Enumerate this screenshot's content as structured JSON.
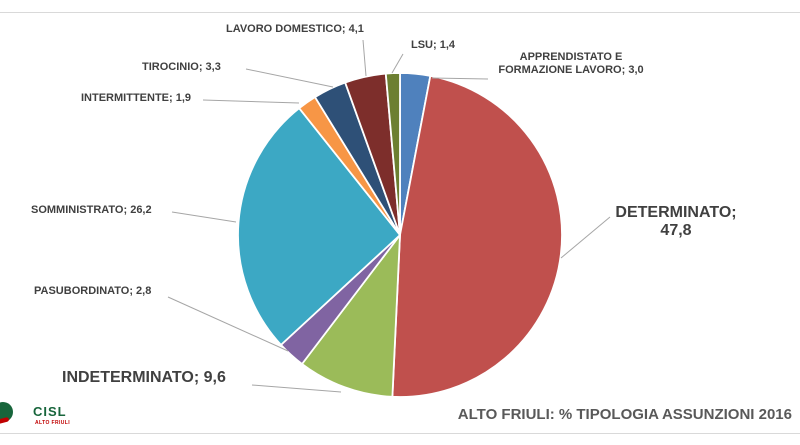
{
  "page": {
    "background": "#FFFFFF",
    "border_line_color": "#D9D9D9"
  },
  "branding": {
    "logo_text": "CISL",
    "logo_subtext": "ALTO FRIULI",
    "logo_green": "#17653B",
    "logo_red": "#C00000"
  },
  "chart_data": {
    "type": "pie",
    "title": "ALTO FRIULI: % TIPOLOGIA ASSUNZIONI 2016",
    "start_angle_deg": 0,
    "direction": "clockwise",
    "legend_position": "none",
    "labels_style": "outside callout labels with leader lines, format: NAME; value (decimal comma)",
    "slices": [
      {
        "name": "APPRENDISTATO E FORMAZIONE LAVORO",
        "value": 3.0,
        "color": "#4F81BD",
        "label_lines": [
          "APPRENDISTATO E",
          "FORMAZIONE LAVORO; 3,0"
        ]
      },
      {
        "name": "DETERMINATO",
        "value": 47.8,
        "color": "#C0504D",
        "label_lines": [
          "DETERMINATO;",
          "47,8"
        ]
      },
      {
        "name": "INDETERMINATO",
        "value": 9.6,
        "color": "#9BBB59",
        "label_lines": [
          "INDETERMINATO; 9,6"
        ]
      },
      {
        "name": "PASUBORDINATO",
        "value": 2.8,
        "color": "#8064A2",
        "label_lines": [
          "PASUBORDINATO; 2,8"
        ]
      },
      {
        "name": "SOMMINISTRATO",
        "value": 26.2,
        "color": "#3CA8C4",
        "label_lines": [
          "SOMMINISTRATO; 26,2"
        ]
      },
      {
        "name": "INTERMITTENTE",
        "value": 1.9,
        "color": "#F79646",
        "label_lines": [
          "INTERMITTENTE; 1,9"
        ]
      },
      {
        "name": "TIROCINIO",
        "value": 3.3,
        "color": "#2E5077",
        "label_lines": [
          "TIROCINIO; 3,3"
        ]
      },
      {
        "name": "LAVORO DOMESTICO",
        "value": 4.1,
        "color": "#7D2E2B",
        "label_lines": [
          "LAVORO DOMESTICO; 4,1"
        ]
      },
      {
        "name": "LSU",
        "value": 1.4,
        "color": "#6C7F31",
        "label_lines": [
          "LSU; 1,4"
        ]
      }
    ],
    "label_color": "#404040",
    "title_color": "#595959",
    "leader_line_color": "#A6A6A6",
    "slice_separator_color": "#FFFFFF"
  }
}
